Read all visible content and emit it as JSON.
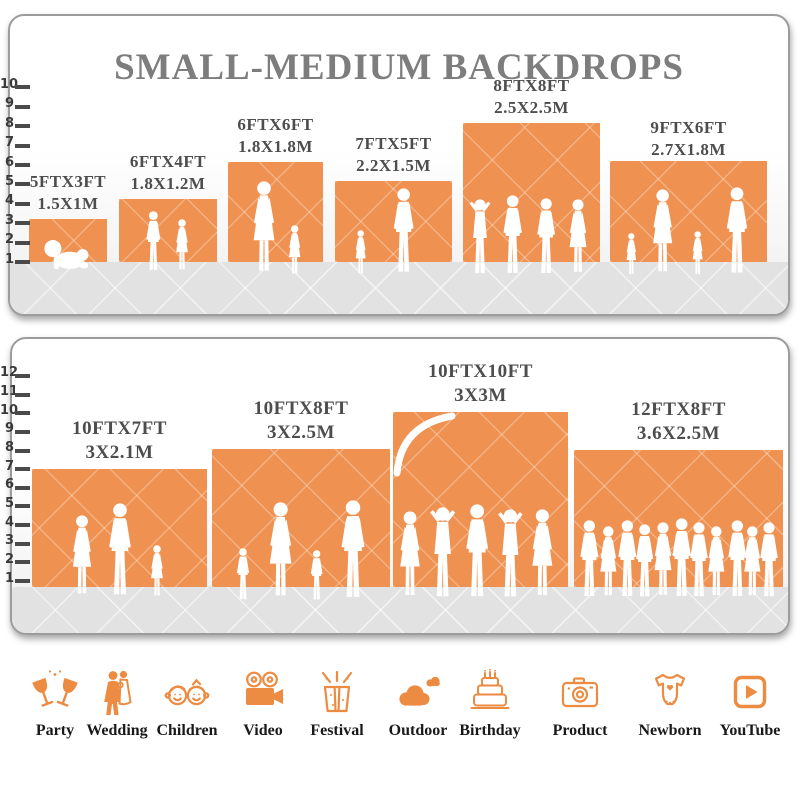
{
  "title": "SMALL-MEDIUM BACKDROPS",
  "colors": {
    "backdrop_orange": "#EF9150",
    "icon_orange": "#EC8B42",
    "floor_gray": "#E2E2E2",
    "title_gray": "#7D7D7D",
    "label_gray": "#4D4D4D"
  },
  "top_panel": {
    "ruler_ticks": [
      "1",
      "2",
      "3",
      "4",
      "5",
      "6",
      "7",
      "8",
      "9",
      "10"
    ],
    "backdrops": [
      {
        "size_ft": "5FTX3FT",
        "size_m": "1.5X1M"
      },
      {
        "size_ft": "6FTX4FT",
        "size_m": "1.8X1.2M"
      },
      {
        "size_ft": "6FTX6FT",
        "size_m": "1.8X1.8M"
      },
      {
        "size_ft": "7FTX5FT",
        "size_m": "2.2X1.5M"
      },
      {
        "size_ft": "8FTX8FT",
        "size_m": "2.5X2.5M"
      },
      {
        "size_ft": "9FTX6FT",
        "size_m": "2.7X1.8M"
      }
    ]
  },
  "bottom_panel": {
    "ruler_ticks": [
      "1",
      "2",
      "3",
      "4",
      "5",
      "6",
      "7",
      "8",
      "9",
      "10",
      "11",
      "12"
    ],
    "backdrops": [
      {
        "size_ft": "10FTX7FT",
        "size_m": "3X2.1M"
      },
      {
        "size_ft": "10FTX8FT",
        "size_m": "3X2.5M"
      },
      {
        "size_ft": "10FTX10FT",
        "size_m": "3X3M"
      },
      {
        "size_ft": "12FTX8FT",
        "size_m": "3.6X2.5M"
      }
    ]
  },
  "categories": [
    {
      "label": "Party",
      "icon": "party-glasses-icon"
    },
    {
      "label": "Wedding",
      "icon": "wedding-couple-icon"
    },
    {
      "label": "Children",
      "icon": "children-faces-icon"
    },
    {
      "label": "Video",
      "icon": "video-camera-icon"
    },
    {
      "label": "Festival",
      "icon": "festival-gift-icon"
    },
    {
      "label": "Outdoor",
      "icon": "outdoor-clouds-icon"
    },
    {
      "label": "Birthday",
      "icon": "birthday-cake-icon"
    },
    {
      "label": "Product",
      "icon": "product-camera-icon"
    },
    {
      "label": "Newborn",
      "icon": "newborn-onesie-icon"
    },
    {
      "label": "YouTube",
      "icon": "youtube-play-icon"
    }
  ]
}
